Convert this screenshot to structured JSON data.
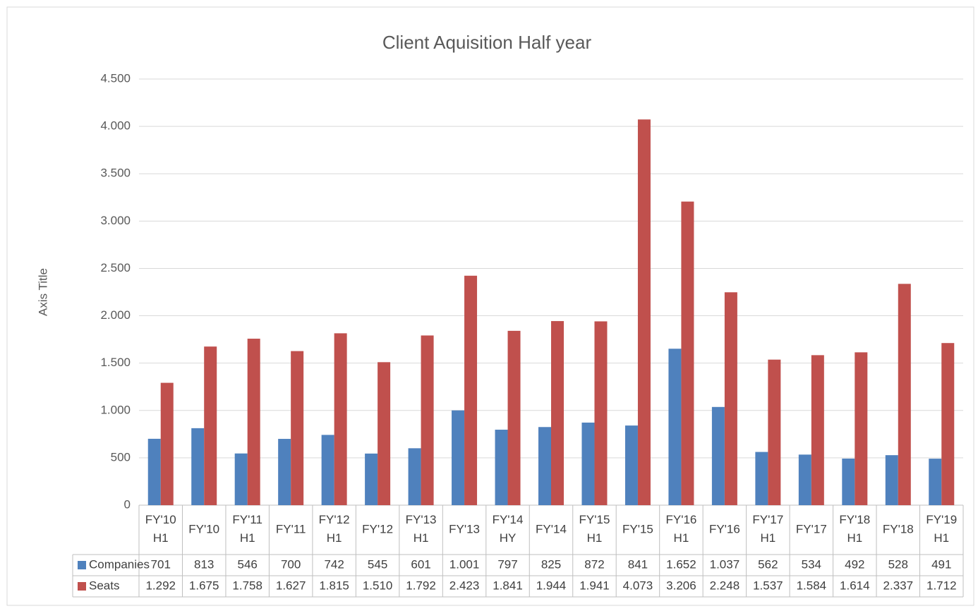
{
  "chart_data": {
    "type": "bar",
    "title": "Client Aquisition Half year",
    "y_axis_label": "Axis Title",
    "categories": [
      "FY'10 H1",
      "FY'10",
      "FY'11 H1",
      "FY'11",
      "FY'12 H1",
      "FY'12",
      "FY'13 H1",
      "FY'13",
      "FY'14 HY",
      "FY'14",
      "FY'15 H1",
      "FY'15",
      "FY'16 H1",
      "FY'16",
      "FY'17 H1",
      "FY'17",
      "FY'18 H1",
      "FY'18",
      "FY'19 H1"
    ],
    "series": [
      {
        "name": "Companies",
        "color": "#4f81bd",
        "values": [
          701,
          813,
          546,
          700,
          742,
          545,
          601,
          1001,
          797,
          825,
          872,
          841,
          1652,
          1037,
          562,
          534,
          492,
          528,
          491
        ],
        "value_labels": [
          "701",
          "813",
          "546",
          "700",
          "742",
          "545",
          "601",
          "1.001",
          "797",
          "825",
          "872",
          "841",
          "1.652",
          "1.037",
          "562",
          "534",
          "492",
          "528",
          "491"
        ]
      },
      {
        "name": "Seats",
        "color": "#c0504d",
        "values": [
          1292,
          1675,
          1758,
          1627,
          1815,
          1510,
          1792,
          2423,
          1841,
          1944,
          1941,
          4073,
          3206,
          2248,
          1537,
          1584,
          1614,
          2337,
          1712
        ],
        "value_labels": [
          "1.292",
          "1.675",
          "1.758",
          "1.627",
          "1.815",
          "1.510",
          "1.792",
          "2.423",
          "1.841",
          "1.944",
          "1.941",
          "4.073",
          "3.206",
          "2.248",
          "1.537",
          "1.584",
          "1.614",
          "2.337",
          "1.712"
        ]
      }
    ],
    "ylim": [
      0,
      4500
    ],
    "yticks": [
      0,
      500,
      {
        "value": 1000,
        "label": "1.000"
      },
      {
        "value": 1500,
        "label": "1.500"
      },
      {
        "value": 2000,
        "label": "2.000"
      },
      {
        "value": 2500,
        "label": "2.500"
      },
      {
        "value": 3000,
        "label": "3.000"
      },
      {
        "value": 3500,
        "label": "3.500"
      },
      {
        "value": 4000,
        "label": "4.000"
      },
      {
        "value": 4500,
        "label": "4.500"
      }
    ],
    "grid": true
  }
}
